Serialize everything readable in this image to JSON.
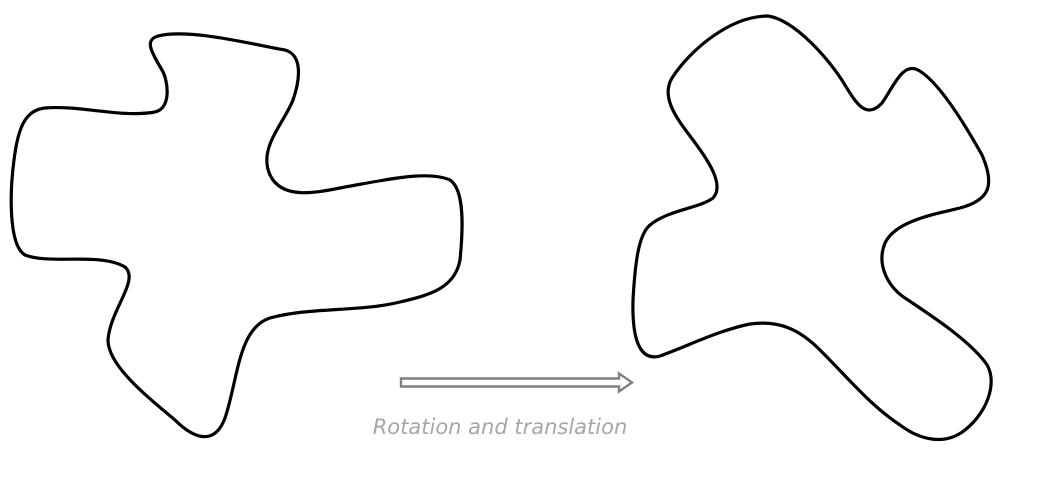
{
  "caption": "Rotation and translation",
  "colors": {
    "shape_stroke": "#000000",
    "arrow_stroke": "#808080",
    "caption_text": "#a6a6a6",
    "background": "#ffffff"
  },
  "shapes": [
    {
      "name": "original-shape"
    },
    {
      "name": "transformed-shape"
    }
  ],
  "transform": {
    "rotation_deg": -45,
    "arrow_icon": "outline-right-arrow-icon"
  }
}
